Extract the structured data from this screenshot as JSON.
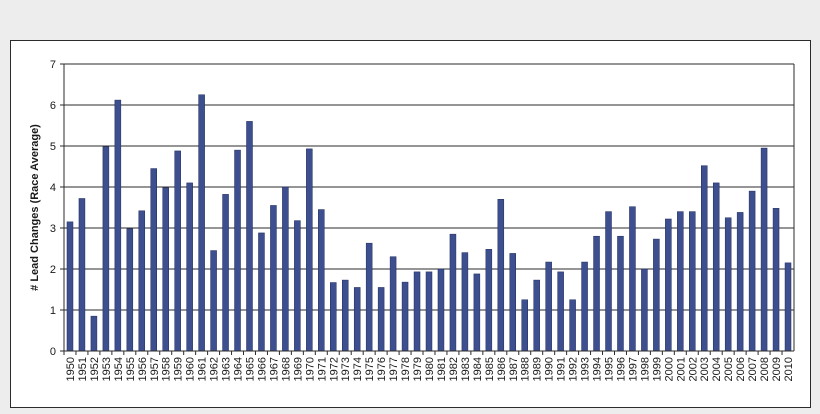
{
  "chart_data": {
    "type": "bar",
    "title": "",
    "xlabel": "",
    "ylabel": "# Lead Changes (Race Average)",
    "ylim": [
      0,
      7
    ],
    "yticks": [
      0,
      1,
      2,
      3,
      4,
      5,
      6,
      7
    ],
    "grid": true,
    "legend": "none",
    "bar_color": "#3d4f8e",
    "categories": [
      "1950",
      "1951",
      "1952",
      "1953",
      "1954",
      "1955",
      "1956",
      "1957",
      "1958",
      "1959",
      "1960",
      "1961",
      "1962",
      "1963",
      "1964",
      "1965",
      "1966",
      "1967",
      "1968",
      "1969",
      "1970",
      "1971",
      "1972",
      "1973",
      "1974",
      "1975",
      "1976",
      "1977",
      "1978",
      "1979",
      "1980",
      "1981",
      "1982",
      "1983",
      "1984",
      "1985",
      "1986",
      "1987",
      "1988",
      "1989",
      "1990",
      "1991",
      "1992",
      "1993",
      "1994",
      "1995",
      "1996",
      "1997",
      "1998",
      "1999",
      "2000",
      "2001",
      "2002",
      "2003",
      "2004",
      "2005",
      "2006",
      "2007",
      "2008",
      "2009",
      "2010"
    ],
    "values": [
      3.15,
      3.72,
      0.85,
      4.98,
      6.12,
      2.98,
      3.42,
      4.45,
      3.98,
      4.88,
      4.1,
      6.25,
      2.45,
      3.82,
      4.9,
      5.6,
      2.88,
      3.55,
      4.0,
      3.18,
      4.93,
      3.45,
      1.67,
      1.73,
      1.55,
      2.63,
      1.55,
      2.3,
      1.68,
      1.93,
      1.93,
      2.0,
      2.85,
      2.4,
      1.88,
      2.48,
      3.7,
      2.38,
      1.25,
      1.73,
      2.17,
      1.93,
      1.25,
      2.17,
      2.8,
      3.4,
      2.8,
      3.52,
      2.0,
      2.73,
      3.22,
      3.4,
      3.4,
      4.52,
      4.1,
      3.25,
      3.38,
      3.9,
      4.95,
      3.48,
      2.15
    ]
  }
}
